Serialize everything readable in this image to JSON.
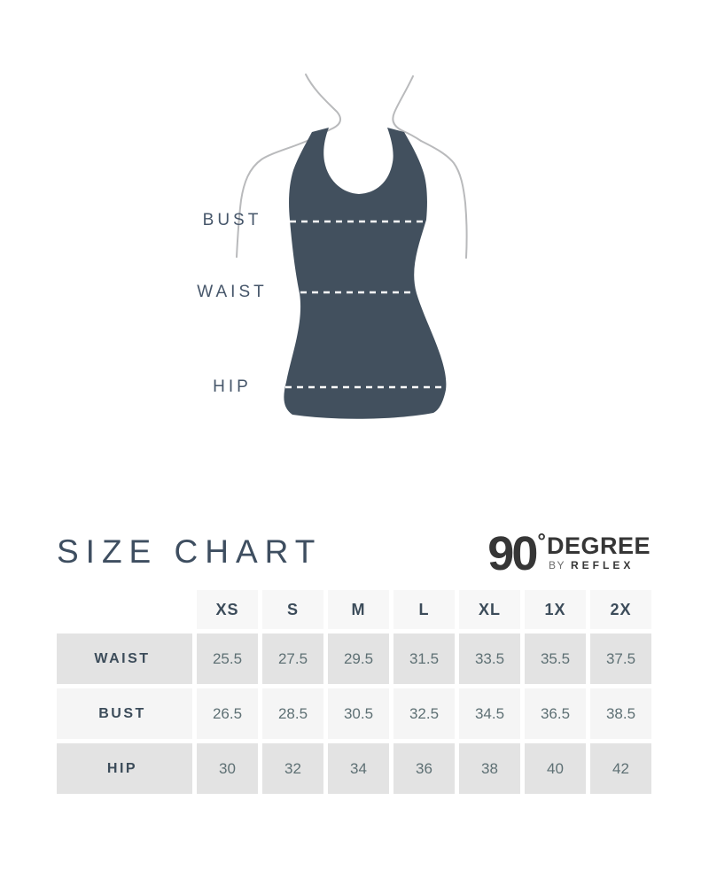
{
  "illustration": {
    "bust_label": "BUST",
    "waist_label": "WAIST",
    "hip_label": "HIP",
    "garment_color": "#42505e",
    "outline_color": "#b9babc",
    "dash_color": "#ffffff"
  },
  "title_section": {
    "title": "SIZE CHART",
    "title_color": "#3e4e60",
    "logo": {
      "number": "90",
      "degree_mark": "°",
      "name": "DEGREE",
      "byline_by": "BY",
      "byline_reflex": "REFLEX",
      "color": "#363636"
    }
  },
  "chart_data": {
    "type": "table",
    "title": "SIZE CHART",
    "columns": [
      "XS",
      "S",
      "M",
      "L",
      "XL",
      "1X",
      "2X"
    ],
    "rows": [
      {
        "label": "WAIST",
        "values": [
          "25.5",
          "27.5",
          "29.5",
          "31.5",
          "33.5",
          "35.5",
          "37.5"
        ]
      },
      {
        "label": "BUST",
        "values": [
          "26.5",
          "28.5",
          "30.5",
          "32.5",
          "34.5",
          "36.5",
          "38.5"
        ]
      },
      {
        "label": "HIP",
        "values": [
          "30",
          "32",
          "34",
          "36",
          "38",
          "40",
          "42"
        ]
      }
    ],
    "row_shades": [
      "#e3e3e3",
      "#f5f5f5",
      "#e3e3e3"
    ],
    "header_shade": "#f7f7f7"
  }
}
